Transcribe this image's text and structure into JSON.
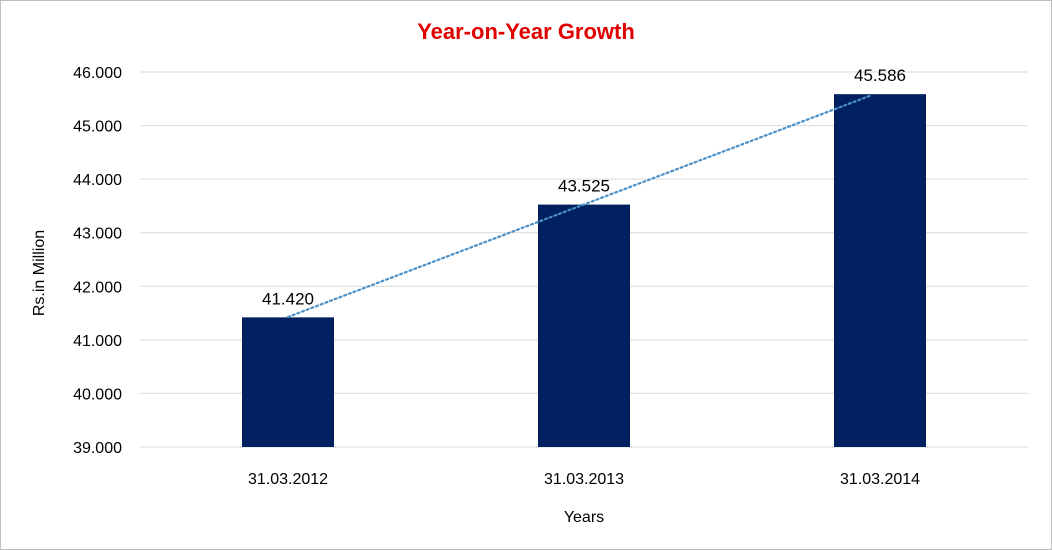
{
  "chart_data": {
    "type": "bar",
    "title": "Year-on-Year Growth",
    "xlabel": "Years",
    "ylabel": "Rs.in Million",
    "categories": [
      "31.03.2012",
      "31.03.2013",
      "31.03.2014"
    ],
    "values": [
      41420,
      43525,
      45586
    ],
    "value_labels": [
      "41.420",
      "43.525",
      "45.586"
    ],
    "ylim": [
      39000,
      46000
    ],
    "yticks": [
      39000,
      40000,
      41000,
      42000,
      43000,
      44000,
      45000,
      46000
    ],
    "ytick_labels": [
      "39.000",
      "40.000",
      "41.000",
      "42.000",
      "43.000",
      "44.000",
      "45.000",
      "46.000"
    ],
    "grid": true,
    "trendline": "linear",
    "colors": {
      "bar": "#002060",
      "title": "#e00000",
      "trendline": "#4a90c8",
      "grid": "#d9d9d9"
    }
  }
}
